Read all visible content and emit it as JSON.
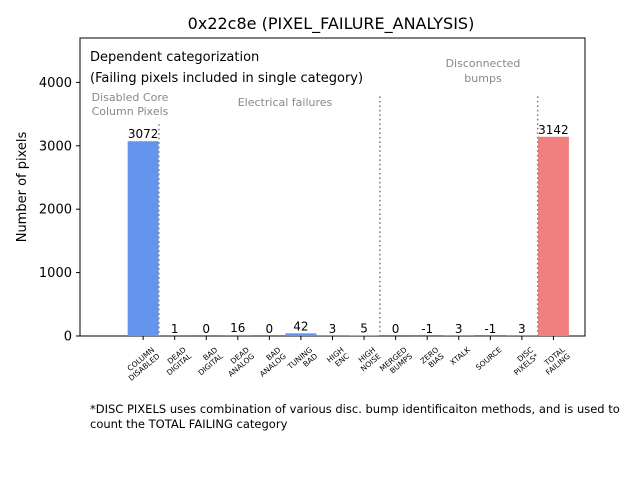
{
  "chart_data": {
    "type": "bar",
    "title": "0x22c8e (PIXEL_FAILURE_ANALYSIS)",
    "xlabel": "",
    "ylabel": "Number of pixels",
    "ylim": [
      0,
      4700
    ],
    "xlim": [
      -2,
      14
    ],
    "yticks": [
      0,
      1000,
      2000,
      3000,
      4000
    ],
    "categories": [
      "COLUMN\nDISABLED",
      "DEAD\nDIGITAL",
      "BAD\nDIGITAL",
      "DEAD\nANALOG",
      "BAD\nANALOG",
      "TUNING\nBAD",
      "HIGH\nENC",
      "HIGH\nNOISE",
      "MERGED\nBUMPS",
      "ZERO\nBIAS",
      "XTALK",
      "SOURCE",
      "DISC\nPIXELS*",
      "TOTAL\nFAILING"
    ],
    "values": [
      3072,
      1,
      0,
      16,
      0,
      42,
      3,
      5,
      0,
      -1,
      3,
      -1,
      3,
      3142
    ],
    "bar_colors": [
      "#6495ED",
      "#6495ED",
      "#6495ED",
      "#6495ED",
      "#6495ED",
      "#6495ED",
      "#6495ED",
      "#6495ED",
      "#6495ED",
      "#6495ED",
      "#6495ED",
      "#6495ED",
      "#6495ED",
      "#F08080"
    ],
    "separators": [
      {
        "x": 0.5,
        "top": 3340
      },
      {
        "x": 7.5,
        "top": 3780
      },
      {
        "x": 12.5,
        "top": 3780
      }
    ],
    "annotations": {
      "heading1": "Dependent categorization",
      "heading2": "(Failing pixels included in single category)",
      "group1": [
        "Disabled Core",
        "Column Pixels"
      ],
      "group2": "Electrical failures",
      "group3": [
        "Disconnected",
        "bumps"
      ]
    }
  },
  "footnote": "*DISC PIXELS uses combination of various disc. bump identificaiton methods, and is used to count the TOTAL FAILING category"
}
